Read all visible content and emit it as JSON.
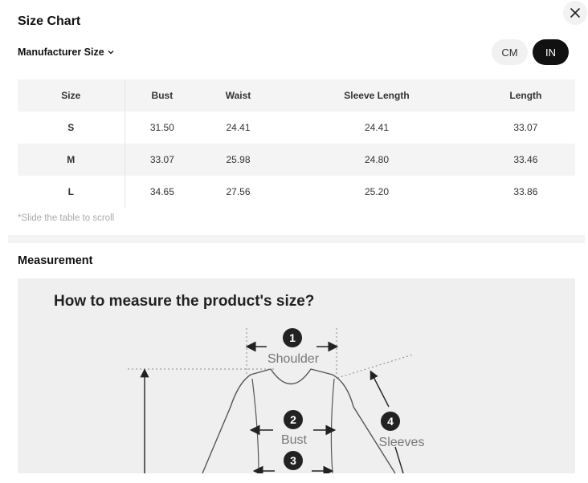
{
  "header": {
    "title": "Size Chart",
    "close_icon": "close-icon"
  },
  "filter": {
    "label": "Manufacturer Size",
    "icon": "chevron-down-icon"
  },
  "units": {
    "options": [
      "CM",
      "IN"
    ],
    "selected": "IN"
  },
  "table": {
    "columns": [
      "Size",
      "Bust",
      "Waist",
      "Sleeve Length",
      "Length"
    ],
    "rows": [
      [
        "S",
        "31.50",
        "24.41",
        "24.41",
        "33.07"
      ],
      [
        "M",
        "33.07",
        "25.98",
        "24.80",
        "33.46"
      ],
      [
        "L",
        "34.65",
        "27.56",
        "25.20",
        "33.86"
      ]
    ]
  },
  "hint": "*Slide the table to scroll",
  "measurement": {
    "title": "Measurement",
    "image": {
      "heading": "How to measure the product's size?",
      "labels": {
        "n1": "1",
        "shoulder": "Shoulder",
        "n2": "2",
        "bust": "Bust",
        "n3": "3",
        "n4": "4",
        "sleeves": "Sleeves"
      }
    }
  }
}
